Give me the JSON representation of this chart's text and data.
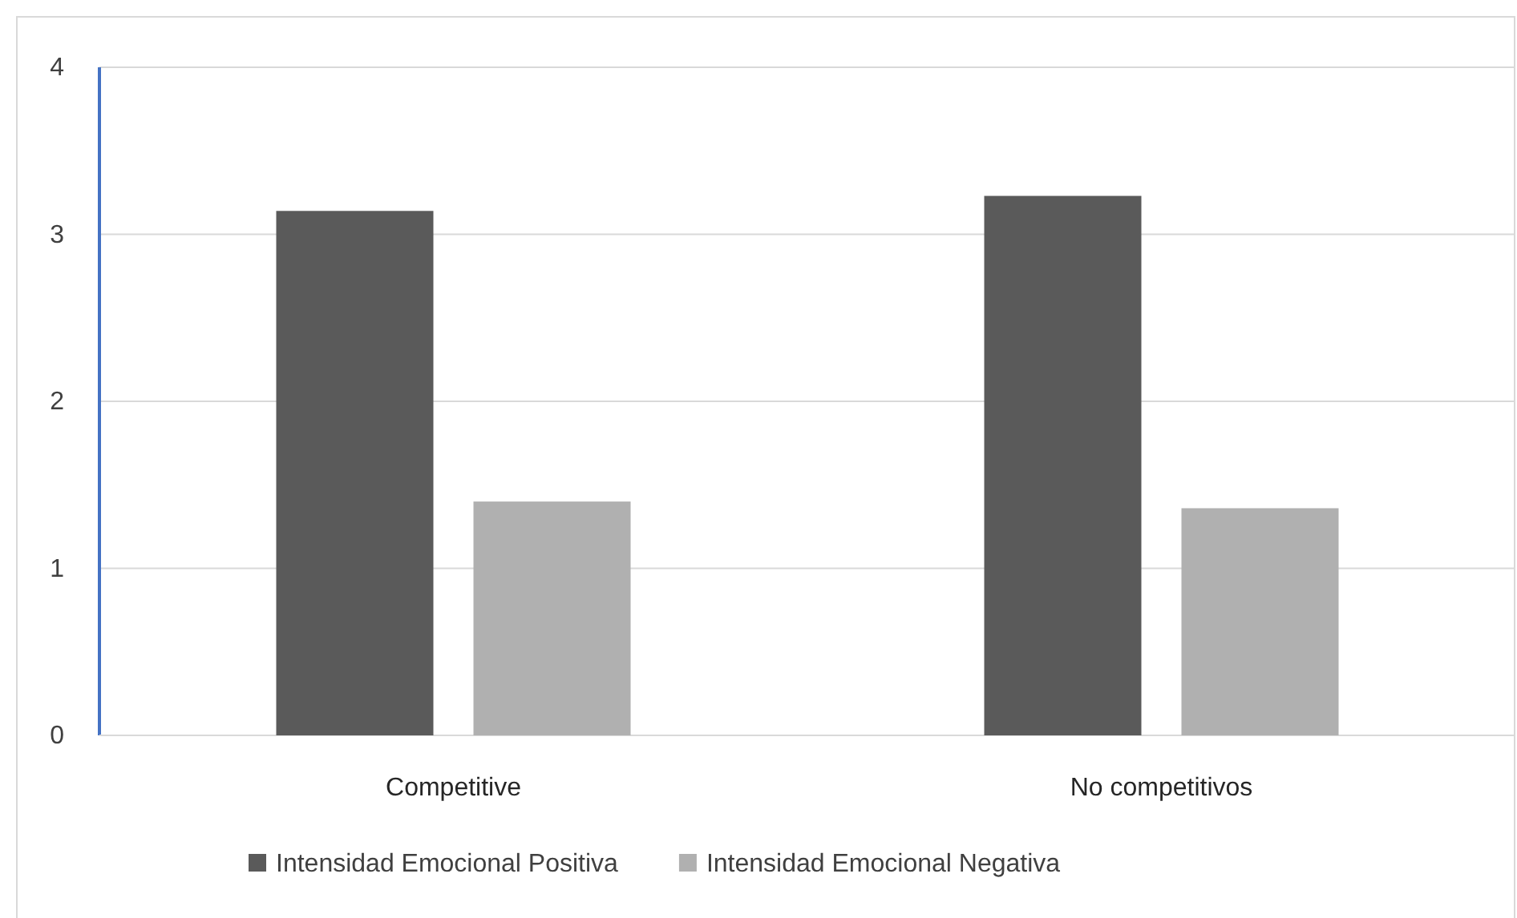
{
  "chart_data": {
    "type": "bar",
    "categories": [
      "Competitive",
      "No competitivos"
    ],
    "series": [
      {
        "name": "Intensidad Emocional Positiva",
        "color": "#5a5a5a",
        "values": [
          3.14,
          3.23
        ]
      },
      {
        "name": "Intensidad Emocional Negativa",
        "color": "#b0b0b0",
        "values": [
          1.4,
          1.36
        ]
      }
    ],
    "ylim": [
      0,
      4
    ],
    "yticks": [
      0,
      1,
      2,
      3,
      4
    ],
    "grid": "y",
    "legend": "bottom"
  }
}
